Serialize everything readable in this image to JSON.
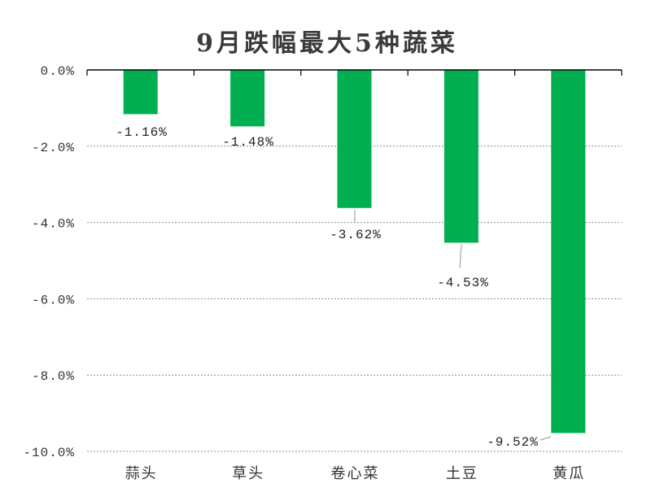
{
  "chart_data": {
    "type": "bar",
    "title": "9月跌幅最大5种蔬菜",
    "categories": [
      "蒜头",
      "草头",
      "卷心菜",
      "土豆",
      "黄瓜"
    ],
    "values": [
      -1.16,
      -1.48,
      -3.62,
      -4.53,
      -9.52
    ],
    "data_labels": [
      "-1.16%",
      "-1.48%",
      "-3.62%",
      "-4.53%",
      "-9.52%"
    ],
    "y_ticks": [
      0,
      -2,
      -4,
      -6,
      -8,
      -10
    ],
    "y_tick_labels": [
      "0.0%",
      "-2.0%",
      "-4.0%",
      "-6.0%",
      "-8.0%",
      "-10.0%"
    ],
    "ylim": [
      -10,
      0
    ],
    "grid": true,
    "bar_color": "#00B050"
  }
}
